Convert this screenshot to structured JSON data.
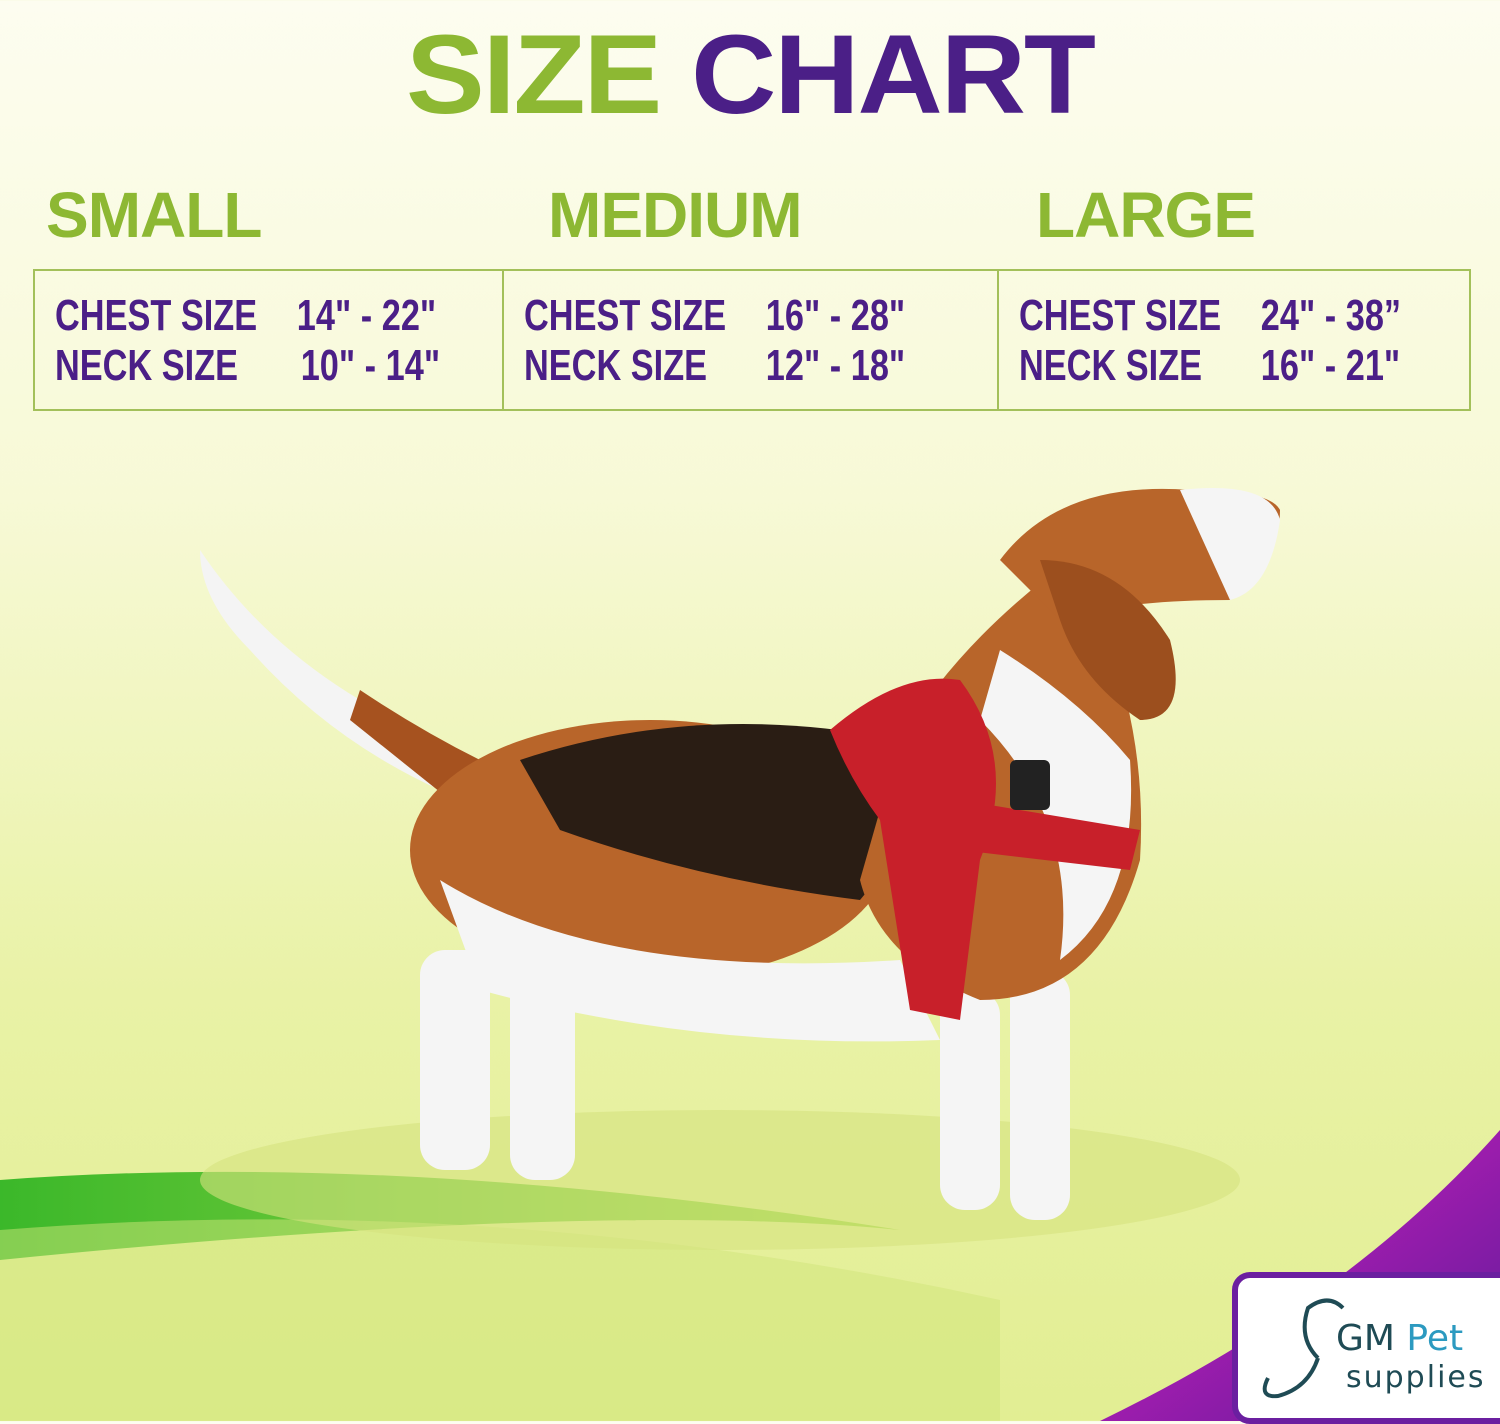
{
  "title": {
    "part1": "SIZE",
    "part2": "CHART"
  },
  "colors": {
    "green": "#8db833",
    "purple": "#4b1f87",
    "border": "#a3c05a"
  },
  "sizes": [
    {
      "name": "SMALL",
      "rows": [
        {
          "label": "CHEST SIZE",
          "value": "14\" - 22\""
        },
        {
          "label": "NECK SIZE",
          "value": "10\" - 14\""
        }
      ]
    },
    {
      "name": "MEDIUM",
      "rows": [
        {
          "label": "CHEST SIZE",
          "value": "16\" - 28\""
        },
        {
          "label": "NECK SIZE",
          "value": "12\" - 18\""
        }
      ]
    },
    {
      "name": "LARGE",
      "rows": [
        {
          "label": "CHEST SIZE",
          "value": "24\" - 38”"
        },
        {
          "label": "NECK SIZE",
          "value": "16\" - 21\""
        }
      ]
    }
  ],
  "logo": {
    "text1": "GM",
    "text2": "Pet",
    "text3": "supplies"
  }
}
